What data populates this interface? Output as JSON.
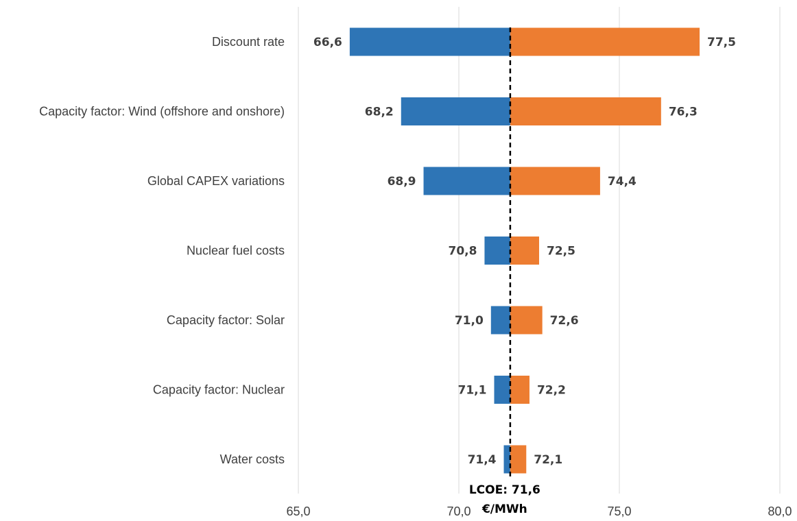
{
  "chart_data": {
    "type": "bar",
    "orientation": "horizontal-tornado",
    "title": "",
    "xlabel": "",
    "ylabel": "",
    "xlim": [
      65.0,
      80.0
    ],
    "x_ticks": [
      65.0,
      70.0,
      75.0,
      80.0
    ],
    "x_tick_labels": [
      "65,0",
      "70,0",
      "75,0",
      "80,0"
    ],
    "grid": "vertical",
    "base_value": 71.6,
    "base_label_line1": "LCOE: 71,6",
    "base_label_line2": "€/MWh",
    "categories": [
      "Discount rate",
      "Capacity factor: Wind (offshore and onshore)",
      "Global CAPEX variations",
      "Nuclear fuel costs",
      "Capacity factor: Solar",
      "Capacity factor: Nuclear",
      "Water costs"
    ],
    "series": [
      {
        "color": "#2e75b6",
        "values": [
          66.6,
          68.2,
          68.9,
          70.8,
          71.0,
          71.1,
          71.4
        ],
        "labels": [
          "66,6",
          "68,2",
          "68,9",
          "70,8",
          "71,0",
          "71,1",
          "71,4"
        ]
      },
      {
        "color": "#ed7d31",
        "values": [
          77.5,
          76.3,
          74.4,
          72.5,
          72.6,
          72.2,
          72.1
        ],
        "labels": [
          "77,5",
          "76,3",
          "74,4",
          "72,5",
          "72,6",
          "72,2",
          "72,1"
        ]
      }
    ]
  }
}
